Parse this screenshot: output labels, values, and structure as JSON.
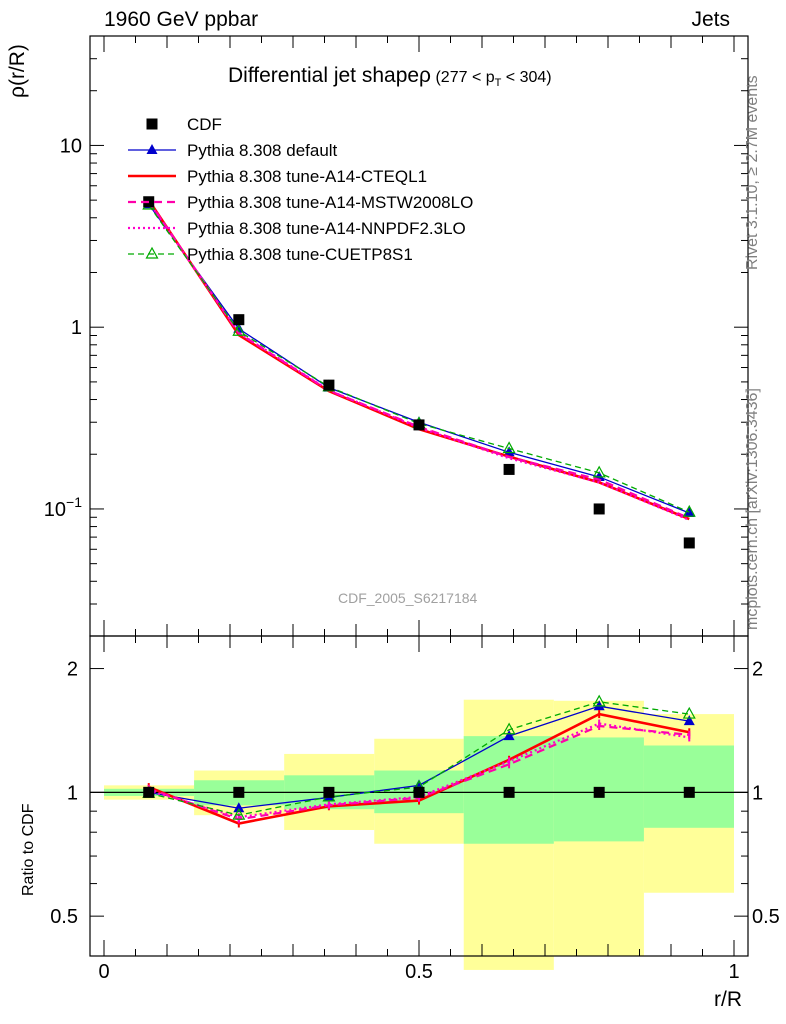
{
  "header": {
    "energy_label": "1960 GeV ppbar",
    "group_label": "Jets"
  },
  "side_labels": {
    "rivet": "Rivet 3.1.10, ≥ 2.7M events",
    "mcplots": "mcplots.cern.ch [arXiv:1306.3436]"
  },
  "chart_data": [
    {
      "type": "line",
      "title_main": "Differential jet shapeρ",
      "title_range": "(277 < p",
      "title_sub": "T",
      "title_end": " < 304)",
      "ylabel": "ρ(r/R)",
      "yscale": "log",
      "xlim": [
        0,
        1
      ],
      "ylim": [
        0.02,
        40
      ],
      "yticks": [
        {
          "value": 10,
          "label": "10"
        },
        {
          "value": 1,
          "label": "1"
        },
        {
          "value": 0.1,
          "label": "10",
          "sup": "−1"
        }
      ],
      "analysis_label": "CDF_2005_S6217184",
      "legend_position": "top-left",
      "data": {
        "name": "CDF",
        "x": [
          0.071,
          0.214,
          0.357,
          0.5,
          0.643,
          0.786,
          0.929
        ],
        "y": [
          4.9,
          1.1,
          0.48,
          0.29,
          0.165,
          0.1,
          0.065
        ],
        "color": "#000000"
      },
      "series": [
        {
          "name": "Pythia 8.308 default",
          "color": "#0000cc",
          "dash": "",
          "width": 1.3,
          "marker": "triangle",
          "y": [
            4.75,
            0.98,
            0.465,
            0.3,
            0.205,
            0.15,
            0.095
          ]
        },
        {
          "name": "Pythia 8.308 tune-A14-CTEQL1",
          "color": "#ff0000",
          "dash": "",
          "width": 2.6,
          "marker": "none",
          "y": [
            5.0,
            0.905,
            0.445,
            0.275,
            0.194,
            0.14,
            0.088
          ]
        },
        {
          "name": "Pythia 8.308 tune-A14-MSTW2008LO",
          "color": "#ff00aa",
          "dash": "8,5",
          "width": 2.2,
          "marker": "none",
          "y": [
            4.95,
            0.925,
            0.448,
            0.283,
            0.193,
            0.145,
            0.089
          ]
        },
        {
          "name": "Pythia 8.308 tune-A14-NNPDF2.3LO",
          "color": "#ff00cc",
          "dash": "2,3",
          "width": 2.2,
          "marker": "none",
          "y": [
            4.9,
            0.93,
            0.45,
            0.28,
            0.19,
            0.14,
            0.087
          ]
        },
        {
          "name": "Pythia 8.308 tune-CUETP8S1",
          "color": "#00aa00",
          "dash": "6,4",
          "width": 1.3,
          "marker": "open-triangle",
          "y": [
            4.7,
            0.95,
            0.47,
            0.295,
            0.215,
            0.158,
            0.096
          ]
        }
      ]
    },
    {
      "type": "line",
      "ylabel": "Ratio to CDF",
      "xlabel": "r/R",
      "yscale": "log",
      "xlim": [
        0,
        1
      ],
      "ylim": [
        0.4,
        2.4
      ],
      "yticks": [
        {
          "value": 2,
          "label": "2"
        },
        {
          "value": 1,
          "label": "1"
        },
        {
          "value": 0.5,
          "label": "0.5"
        }
      ],
      "xticks": [
        {
          "value": 0,
          "label": "0"
        },
        {
          "value": 0.5,
          "label": "0.5"
        },
        {
          "value": 1,
          "label": "1"
        }
      ],
      "bin_edges": [
        0,
        0.143,
        0.286,
        0.429,
        0.571,
        0.714,
        0.857,
        1.0
      ],
      "band_stat": {
        "color": "#99ff99",
        "lo": [
          0.98,
          0.93,
          0.91,
          0.89,
          0.75,
          0.76,
          0.82
        ],
        "hi": [
          1.02,
          1.07,
          1.1,
          1.13,
          1.37,
          1.36,
          1.3
        ]
      },
      "band_total": {
        "color": "#ffff99",
        "lo": [
          0.96,
          0.88,
          0.81,
          0.75,
          0.37,
          0.4,
          0.57
        ],
        "hi": [
          1.04,
          1.13,
          1.24,
          1.35,
          1.68,
          1.67,
          1.55
        ]
      },
      "ratio_x": [
        0.071,
        0.214,
        0.357,
        0.5,
        0.643,
        0.786,
        0.929
      ],
      "ratios": [
        [
          1.0,
          0.915,
          0.972,
          1.04,
          1.37,
          1.62,
          1.49
        ],
        [
          1.03,
          0.84,
          0.925,
          0.955,
          1.2,
          1.55,
          1.4
        ],
        [
          1.02,
          0.86,
          0.93,
          0.97,
          1.17,
          1.45,
          1.38
        ],
        [
          1.01,
          0.87,
          0.935,
          0.975,
          1.19,
          1.47,
          1.36
        ],
        [
          0.995,
          0.88,
          0.975,
          1.03,
          1.42,
          1.66,
          1.55
        ]
      ]
    }
  ]
}
